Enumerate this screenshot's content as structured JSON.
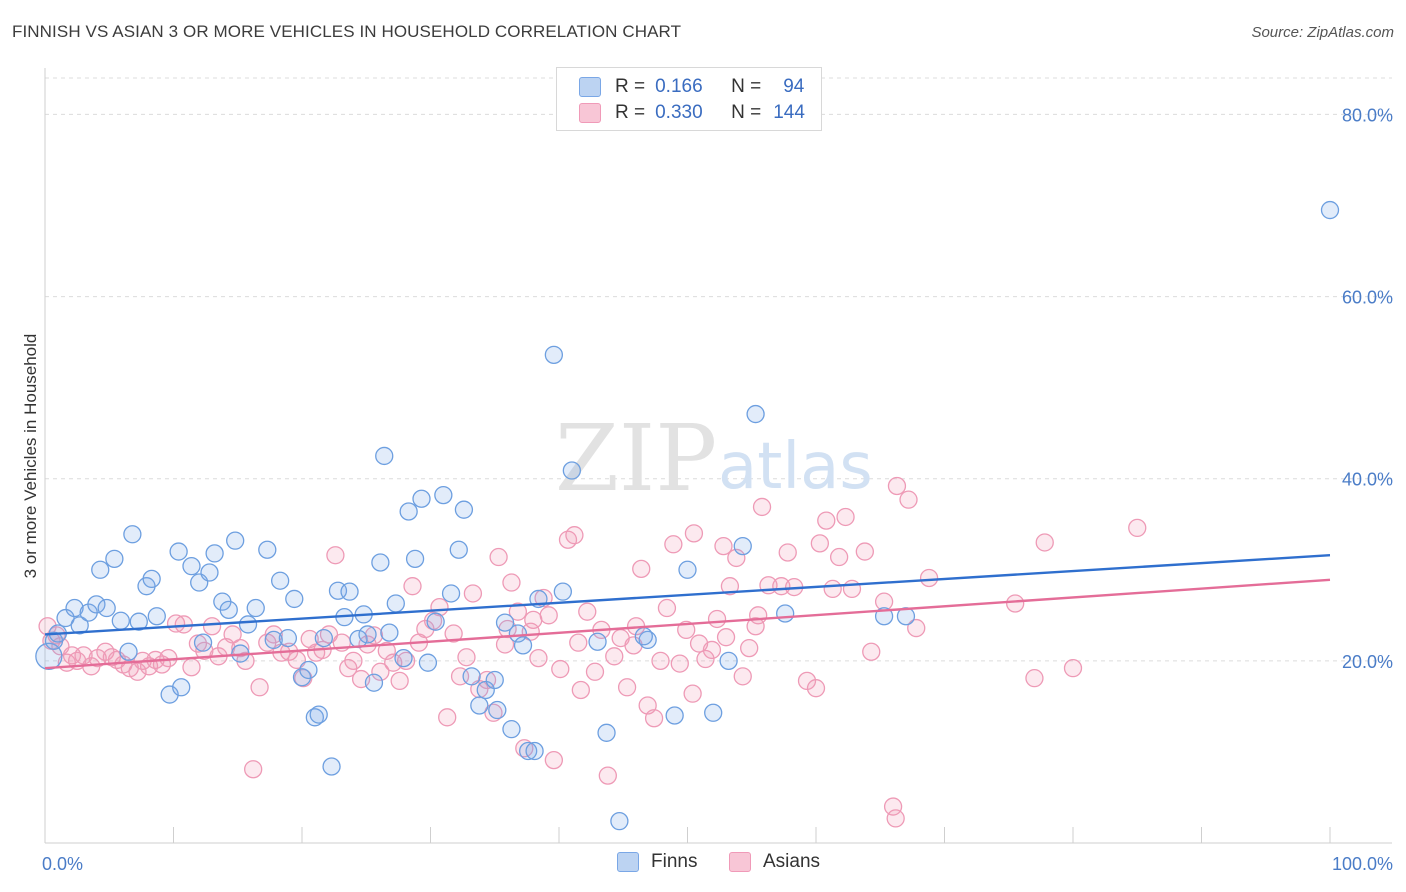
{
  "title": "FINNISH VS ASIAN 3 OR MORE VEHICLES IN HOUSEHOLD CORRELATION CHART",
  "source": "Source: ZipAtlas.com",
  "watermark": {
    "zip": "ZIP",
    "atlas": "atlas"
  },
  "legend": {
    "r_label": "R =",
    "n_label": "N =",
    "rows": [
      {
        "r": "0.166",
        "n": "94"
      },
      {
        "r": "0.330",
        "n": "144"
      }
    ]
  },
  "chart_data": {
    "type": "scatter",
    "title": "FINNISH VS ASIAN 3 OR MORE VEHICLES IN HOUSEHOLD CORRELATION CHART",
    "xlabel": "",
    "ylabel": "3 or more Vehicles in Household",
    "xlim": [
      0,
      100
    ],
    "ylim": [
      0,
      84
    ],
    "x_tick_labels": [
      "0.0%",
      "100.0%"
    ],
    "y_ticks": [
      20,
      40,
      60,
      80
    ],
    "y_tick_labels": [
      "20.0%",
      "40.0%",
      "60.0%",
      "80.0%"
    ],
    "grid": true,
    "legend_position": "top-center",
    "colors": {
      "finns": "#7aa7e6",
      "asians": "#f09ab8",
      "finns_line": "#2f6fce",
      "asians_line": "#e46d98"
    },
    "series": [
      {
        "name": "Finns",
        "trend": {
          "x": [
            0,
            100
          ],
          "y": [
            22.9,
            31.6
          ]
        },
        "points": [
          [
            0.3,
            20.5
          ],
          [
            0.7,
            22.2
          ],
          [
            1.0,
            23.0
          ],
          [
            1.6,
            24.7
          ],
          [
            2.3,
            25.8
          ],
          [
            2.7,
            23.9
          ],
          [
            3.4,
            25.3
          ],
          [
            4.0,
            26.2
          ],
          [
            4.3,
            30.0
          ],
          [
            4.8,
            25.8
          ],
          [
            5.4,
            31.2
          ],
          [
            5.9,
            24.4
          ],
          [
            6.5,
            21.0
          ],
          [
            6.8,
            33.9
          ],
          [
            7.3,
            24.3
          ],
          [
            7.9,
            28.2
          ],
          [
            8.3,
            29.0
          ],
          [
            8.7,
            24.9
          ],
          [
            9.7,
            16.3
          ],
          [
            10.4,
            32.0
          ],
          [
            10.6,
            17.1
          ],
          [
            11.4,
            30.4
          ],
          [
            12.0,
            28.6
          ],
          [
            12.3,
            22.0
          ],
          [
            12.8,
            29.7
          ],
          [
            13.2,
            31.8
          ],
          [
            13.8,
            26.5
          ],
          [
            14.3,
            25.6
          ],
          [
            14.8,
            33.2
          ],
          [
            15.2,
            20.8
          ],
          [
            15.8,
            24.0
          ],
          [
            16.4,
            25.8
          ],
          [
            17.3,
            32.2
          ],
          [
            17.8,
            22.3
          ],
          [
            18.3,
            28.8
          ],
          [
            18.9,
            22.5
          ],
          [
            19.4,
            26.8
          ],
          [
            20.0,
            18.2
          ],
          [
            20.5,
            19.0
          ],
          [
            21.0,
            13.8
          ],
          [
            21.3,
            14.1
          ],
          [
            21.7,
            22.5
          ],
          [
            22.3,
            8.4
          ],
          [
            22.8,
            27.7
          ],
          [
            23.3,
            24.8
          ],
          [
            23.7,
            27.6
          ],
          [
            24.4,
            22.4
          ],
          [
            24.8,
            25.1
          ],
          [
            25.1,
            22.9
          ],
          [
            25.6,
            17.6
          ],
          [
            26.1,
            30.8
          ],
          [
            26.4,
            42.5
          ],
          [
            26.8,
            23.1
          ],
          [
            27.3,
            26.3
          ],
          [
            27.9,
            20.3
          ],
          [
            28.3,
            36.4
          ],
          [
            28.8,
            31.2
          ],
          [
            29.3,
            37.8
          ],
          [
            29.8,
            19.8
          ],
          [
            30.4,
            24.3
          ],
          [
            31.0,
            38.2
          ],
          [
            31.6,
            27.4
          ],
          [
            32.2,
            32.2
          ],
          [
            32.6,
            36.6
          ],
          [
            33.2,
            18.3
          ],
          [
            33.8,
            15.1
          ],
          [
            34.3,
            16.8
          ],
          [
            35.0,
            17.9
          ],
          [
            35.2,
            14.6
          ],
          [
            35.8,
            24.2
          ],
          [
            36.3,
            12.5
          ],
          [
            36.8,
            23.0
          ],
          [
            37.2,
            21.7
          ],
          [
            37.6,
            10.1
          ],
          [
            38.1,
            10.1
          ],
          [
            38.4,
            26.8
          ],
          [
            39.6,
            53.6
          ],
          [
            40.3,
            27.6
          ],
          [
            41.0,
            40.9
          ],
          [
            43.0,
            22.1
          ],
          [
            43.7,
            12.1
          ],
          [
            44.7,
            2.4
          ],
          [
            46.9,
            22.3
          ],
          [
            49.0,
            14.0
          ],
          [
            50.0,
            30.0
          ],
          [
            52.0,
            14.3
          ],
          [
            53.2,
            20.0
          ],
          [
            54.3,
            32.6
          ],
          [
            55.3,
            47.1
          ],
          [
            57.6,
            25.2
          ],
          [
            65.3,
            24.9
          ],
          [
            67.0,
            24.9
          ],
          [
            100.0,
            69.5
          ],
          [
            46.6,
            22.7
          ]
        ]
      },
      {
        "name": "Asians",
        "trend": {
          "x": [
            0,
            100
          ],
          "y": [
            19.2,
            28.9
          ]
        },
        "points": [
          [
            0.2,
            23.8
          ],
          [
            0.5,
            22.2
          ],
          [
            0.9,
            22.8
          ],
          [
            1.2,
            21.6
          ],
          [
            1.7,
            19.8
          ],
          [
            2.1,
            20.6
          ],
          [
            2.5,
            20.0
          ],
          [
            3.0,
            20.6
          ],
          [
            3.6,
            19.4
          ],
          [
            4.1,
            20.3
          ],
          [
            4.7,
            21.0
          ],
          [
            5.2,
            20.4
          ],
          [
            5.6,
            20.1
          ],
          [
            6.1,
            19.6
          ],
          [
            6.6,
            19.2
          ],
          [
            7.2,
            18.8
          ],
          [
            7.6,
            20.0
          ],
          [
            8.1,
            19.4
          ],
          [
            8.6,
            20.1
          ],
          [
            9.1,
            19.6
          ],
          [
            9.6,
            20.3
          ],
          [
            10.2,
            24.1
          ],
          [
            10.8,
            24.0
          ],
          [
            11.4,
            19.3
          ],
          [
            11.9,
            21.9
          ],
          [
            12.4,
            21.1
          ],
          [
            13.0,
            23.8
          ],
          [
            13.5,
            20.5
          ],
          [
            14.1,
            21.5
          ],
          [
            14.6,
            22.9
          ],
          [
            15.2,
            21.4
          ],
          [
            15.6,
            20.0
          ],
          [
            16.2,
            8.1
          ],
          [
            16.7,
            17.1
          ],
          [
            17.3,
            22.0
          ],
          [
            17.8,
            22.9
          ],
          [
            18.4,
            20.9
          ],
          [
            19.0,
            21.0
          ],
          [
            19.6,
            20.1
          ],
          [
            20.1,
            18.1
          ],
          [
            20.6,
            22.4
          ],
          [
            21.1,
            20.9
          ],
          [
            21.6,
            21.2
          ],
          [
            22.1,
            22.9
          ],
          [
            22.6,
            31.6
          ],
          [
            23.1,
            22.0
          ],
          [
            23.6,
            19.2
          ],
          [
            24.0,
            20.0
          ],
          [
            24.6,
            18.0
          ],
          [
            25.1,
            21.8
          ],
          [
            25.6,
            22.8
          ],
          [
            26.1,
            18.8
          ],
          [
            26.6,
            21.1
          ],
          [
            27.1,
            19.8
          ],
          [
            27.6,
            17.8
          ],
          [
            28.1,
            20.0
          ],
          [
            28.6,
            28.2
          ],
          [
            29.1,
            22.0
          ],
          [
            29.6,
            23.5
          ],
          [
            30.2,
            24.4
          ],
          [
            30.7,
            25.9
          ],
          [
            31.3,
            13.8
          ],
          [
            31.8,
            23.0
          ],
          [
            32.3,
            18.3
          ],
          [
            32.8,
            20.4
          ],
          [
            33.3,
            27.4
          ],
          [
            33.8,
            16.9
          ],
          [
            34.4,
            17.9
          ],
          [
            34.9,
            14.3
          ],
          [
            35.3,
            31.4
          ],
          [
            35.8,
            21.8
          ],
          [
            36.3,
            28.6
          ],
          [
            36.8,
            25.4
          ],
          [
            37.3,
            10.4
          ],
          [
            37.8,
            23.2
          ],
          [
            38.4,
            20.3
          ],
          [
            38.8,
            26.9
          ],
          [
            39.2,
            25.0
          ],
          [
            39.6,
            9.1
          ],
          [
            40.1,
            19.1
          ],
          [
            40.7,
            33.3
          ],
          [
            41.2,
            33.8
          ],
          [
            41.7,
            16.8
          ],
          [
            42.2,
            25.4
          ],
          [
            42.8,
            18.8
          ],
          [
            43.3,
            23.4
          ],
          [
            43.8,
            7.4
          ],
          [
            44.3,
            20.5
          ],
          [
            44.8,
            22.5
          ],
          [
            45.3,
            17.1
          ],
          [
            45.8,
            21.7
          ],
          [
            46.4,
            30.1
          ],
          [
            46.9,
            15.1
          ],
          [
            47.4,
            13.7
          ],
          [
            47.9,
            20.0
          ],
          [
            48.4,
            25.8
          ],
          [
            48.9,
            32.8
          ],
          [
            49.4,
            19.7
          ],
          [
            49.9,
            23.4
          ],
          [
            50.4,
            16.4
          ],
          [
            50.9,
            21.9
          ],
          [
            51.4,
            20.2
          ],
          [
            51.9,
            21.2
          ],
          [
            52.3,
            24.6
          ],
          [
            52.8,
            32.6
          ],
          [
            53.3,
            28.2
          ],
          [
            53.8,
            31.3
          ],
          [
            54.3,
            18.3
          ],
          [
            54.8,
            21.4
          ],
          [
            55.3,
            23.8
          ],
          [
            55.8,
            36.9
          ],
          [
            56.3,
            28.3
          ],
          [
            57.3,
            28.2
          ],
          [
            57.8,
            31.9
          ],
          [
            58.3,
            28.1
          ],
          [
            59.3,
            17.8
          ],
          [
            60.3,
            32.9
          ],
          [
            60.8,
            35.4
          ],
          [
            61.3,
            27.9
          ],
          [
            61.8,
            31.4
          ],
          [
            62.3,
            35.8
          ],
          [
            62.8,
            27.9
          ],
          [
            63.8,
            32.0
          ],
          [
            64.3,
            21.0
          ],
          [
            65.3,
            26.5
          ],
          [
            66.3,
            39.2
          ],
          [
            67.2,
            37.7
          ],
          [
            67.8,
            23.6
          ],
          [
            68.8,
            29.1
          ],
          [
            77.0,
            18.1
          ],
          [
            77.8,
            33.0
          ],
          [
            85.0,
            34.6
          ],
          [
            80.0,
            19.2
          ],
          [
            66.0,
            4.0
          ],
          [
            66.2,
            2.7
          ],
          [
            60.0,
            17.0
          ],
          [
            55.5,
            25.0
          ],
          [
            75.5,
            26.3
          ],
          [
            53.0,
            22.6
          ],
          [
            50.5,
            34.0
          ],
          [
            46.0,
            23.8
          ],
          [
            41.5,
            22.0
          ],
          [
            38.0,
            24.5
          ],
          [
            36.0,
            23.5
          ]
        ]
      }
    ]
  }
}
